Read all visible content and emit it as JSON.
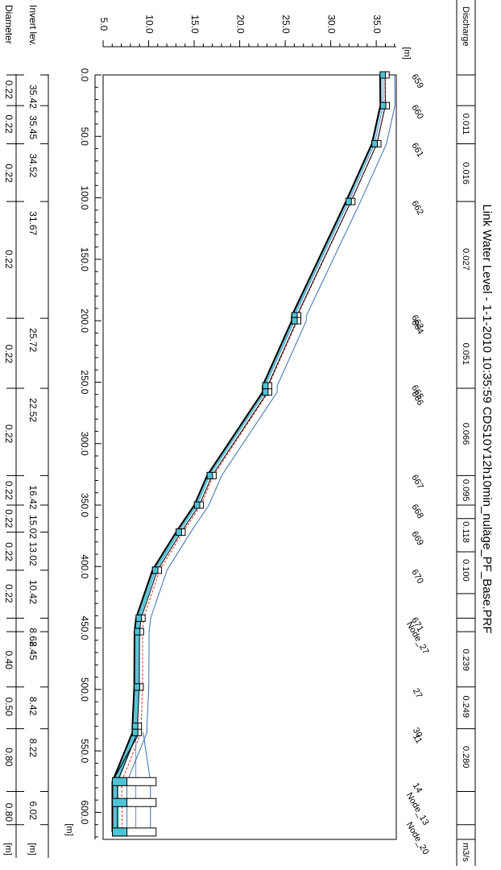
{
  "chart_data": {
    "type": "line",
    "title": "Link Water Level - 1-1-2010 10:35:59 CDS10Y12h10min_nuläge_PF_Base.PRF",
    "x_axis": {
      "unit": "[m]",
      "ticks": [
        "0.0",
        "50.0",
        "100.0",
        "150.0",
        "200.0",
        "250.0",
        "300.0",
        "350.0",
        "400.0",
        "450.0",
        "500.0",
        "550.0",
        "600.0"
      ],
      "range": [
        0,
        622
      ]
    },
    "y_axis": {
      "unit": "[m]",
      "ticks": [
        "5.0",
        "10.0",
        "15.0",
        "20.0",
        "25.0",
        "30.0",
        "35.0"
      ],
      "range": [
        5.0,
        37.2
      ]
    },
    "nodes": [
      {
        "name": "659",
        "x": 0,
        "z": 35.42
      },
      {
        "name": "660",
        "x": 25,
        "z": 35.45
      },
      {
        "name": "661",
        "x": 56,
        "z": 34.52
      },
      {
        "name": "662",
        "x": 103,
        "z": 31.67
      },
      {
        "name": "663",
        "x": 196,
        "z": 25.72
      },
      {
        "name": "664",
        "x": 200,
        "z": 25.72
      },
      {
        "name": "665",
        "x": 253,
        "z": 22.52
      },
      {
        "name": "666",
        "x": 258,
        "z": 22.52
      },
      {
        "name": "667",
        "x": 326,
        "z": 16.42
      },
      {
        "name": "668",
        "x": 350,
        "z": 15.02
      },
      {
        "name": "669",
        "x": 372,
        "z": 13.02
      },
      {
        "name": "670",
        "x": 403,
        "z": 10.42
      },
      {
        "name": "671",
        "x": 442,
        "z": 8.62
      },
      {
        "name": "Node_27",
        "x": 453,
        "z": 8.45
      },
      {
        "name": "27",
        "x": 498,
        "z": 8.42
      },
      {
        "name": "30",
        "x": 530,
        "z": 8.22
      },
      {
        "name": "11",
        "x": 535,
        "z": 8.22
      },
      {
        "name": "14",
        "x": 575,
        "z": 6.02
      },
      {
        "name": "Node_13",
        "x": 592,
        "z": 6.02
      },
      {
        "name": "Node_20",
        "x": 616,
        "z": 6.02
      }
    ],
    "well_height": 1.0,
    "ground_offset": 1.6,
    "water_depth": [
      0.08,
      0.08,
      0.09,
      0.1,
      0.12,
      0.12,
      0.13,
      0.13,
      0.16,
      0.17,
      0.18,
      0.2,
      0.22,
      0.24,
      0.26,
      0.27,
      0.28,
      0.3,
      0.32,
      0.33
    ],
    "bottom_table": {
      "invert_label": "Invert lev.",
      "diameter_label": "Diameter",
      "unit_row": "[m]",
      "unit_row2": "[m]",
      "invert_levels": [
        {
          "x": 0,
          "label": "35.42"
        },
        {
          "x": 25,
          "label": "35.45"
        },
        {
          "x": 56,
          "label": "34.52"
        },
        {
          "x": 103,
          "label": "31.67"
        },
        {
          "x": 198,
          "label": "25.72"
        },
        {
          "x": 255,
          "label": "22.52"
        },
        {
          "x": 326,
          "label": "16.42"
        },
        {
          "x": 350,
          "label": "15.02"
        },
        {
          "x": 372,
          "label": "13.02"
        },
        {
          "x": 403,
          "label": "10.42"
        },
        {
          "x": 442,
          "label": "8.62"
        },
        {
          "x": 453,
          "label": "8.45"
        },
        {
          "x": 498,
          "label": "8.42"
        },
        {
          "x": 532,
          "label": "8.22"
        },
        {
          "x": 583,
          "label": "6.02"
        }
      ],
      "diameters": [
        {
          "x": 12,
          "label": "0.22"
        },
        {
          "x": 40,
          "label": "0.22"
        },
        {
          "x": 80,
          "label": "0.22"
        },
        {
          "x": 150,
          "label": "0.22"
        },
        {
          "x": 227,
          "label": "0.22"
        },
        {
          "x": 292,
          "label": "0.22"
        },
        {
          "x": 338,
          "label": "0.22"
        },
        {
          "x": 361,
          "label": "0.22"
        },
        {
          "x": 388,
          "label": "0.22"
        },
        {
          "x": 422,
          "label": "0.22"
        },
        {
          "x": 476,
          "label": "0.40"
        },
        {
          "x": 514,
          "label": "0.50"
        },
        {
          "x": 555,
          "label": "0.80"
        },
        {
          "x": 600,
          "label": "0.80"
        }
      ],
      "separators": [
        0,
        25,
        56,
        103,
        198,
        255,
        326,
        350,
        372,
        403,
        442,
        453,
        498,
        532,
        583,
        610
      ]
    },
    "top_table": {
      "label": "Discharge",
      "unit": "m3/s",
      "values": [
        {
          "x": 40,
          "label": "0.011"
        },
        {
          "x": 80,
          "label": "0.016"
        },
        {
          "x": 150,
          "label": "0.027"
        },
        {
          "x": 227,
          "label": "0.051"
        },
        {
          "x": 292,
          "label": "0.066"
        },
        {
          "x": 338,
          "label": "0.095"
        },
        {
          "x": 372,
          "label": "0.118"
        },
        {
          "x": 403,
          "label": "0.100"
        },
        {
          "x": 476,
          "label": "0.239"
        },
        {
          "x": 514,
          "label": "0.249"
        },
        {
          "x": 555,
          "label": "0.280"
        }
      ],
      "separators": [
        0,
        25,
        56,
        103,
        198,
        255,
        326,
        350,
        361,
        388,
        422,
        442,
        453,
        498,
        532,
        583,
        610
      ]
    },
    "colors": {
      "pipe": "#000000",
      "water": "#4fc3d6",
      "energy": "#d32f2f",
      "ground": "#3b6fb0",
      "well_fill": "#ffffff"
    }
  }
}
